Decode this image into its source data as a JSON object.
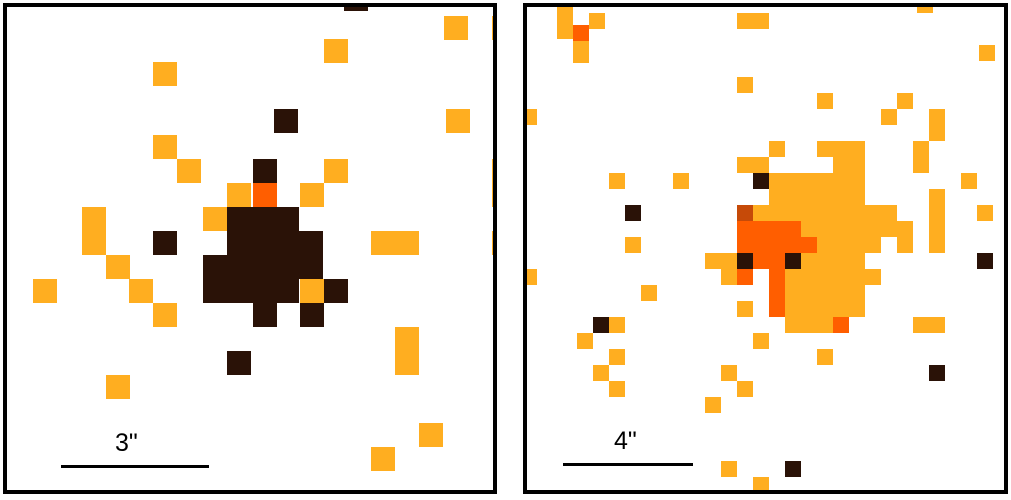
{
  "palette": {
    "dark": "#2a1207",
    "darkred": "#6b2a0e",
    "brown": "#5a220c",
    "red": "#ff5e00",
    "orange": "#ffae20",
    "midorange": "#ff8a14",
    "rust": "#c64a08"
  },
  "panels": [
    {
      "id": "left",
      "scalebar_label": "3\""
    },
    {
      "id": "right",
      "scalebar_label": "4\""
    }
  ]
}
